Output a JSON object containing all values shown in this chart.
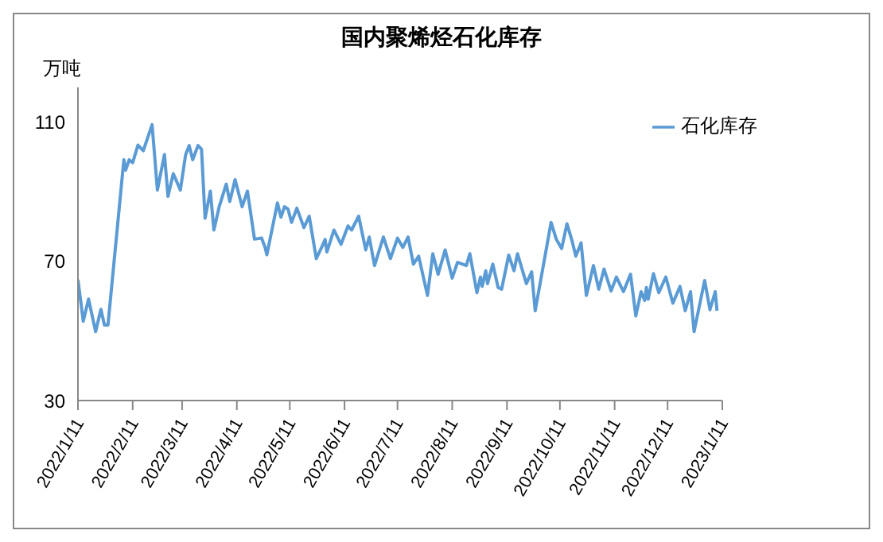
{
  "chart_data": {
    "type": "line",
    "title": "国内聚烯烃石化库存",
    "ylabel": "万吨",
    "x": [
      "2022-01-11",
      "2022-01-14",
      "2022-01-17",
      "2022-01-21",
      "2022-01-24",
      "2022-01-26",
      "2022-01-28",
      "2022-02-06",
      "2022-02-07",
      "2022-02-09",
      "2022-02-11",
      "2022-02-14",
      "2022-02-17",
      "2022-02-22",
      "2022-02-25",
      "2022-03-01",
      "2022-03-03",
      "2022-03-06",
      "2022-03-10",
      "2022-03-13",
      "2022-03-15",
      "2022-03-17",
      "2022-03-20",
      "2022-03-22",
      "2022-03-24",
      "2022-03-27",
      "2022-03-29",
      "2022-04-01",
      "2022-04-05",
      "2022-04-07",
      "2022-04-10",
      "2022-04-14",
      "2022-04-17",
      "2022-04-21",
      "2022-04-25",
      "2022-04-27",
      "2022-04-28",
      "2022-05-04",
      "2022-05-06",
      "2022-05-08",
      "2022-05-10",
      "2022-05-12",
      "2022-05-15",
      "2022-05-19",
      "2022-05-22",
      "2022-05-26",
      "2022-05-29",
      "2022-05-31",
      "2022-06-01",
      "2022-06-05",
      "2022-06-09",
      "2022-06-13",
      "2022-06-15",
      "2022-06-19",
      "2022-06-23",
      "2022-06-25",
      "2022-06-28",
      "2022-07-03",
      "2022-07-07",
      "2022-07-11",
      "2022-07-14",
      "2022-07-17",
      "2022-07-20",
      "2022-07-23",
      "2022-07-28",
      "2022-07-31",
      "2022-08-03",
      "2022-08-07",
      "2022-08-11",
      "2022-08-14",
      "2022-08-19",
      "2022-08-21",
      "2022-08-25",
      "2022-08-27",
      "2022-08-28",
      "2022-08-30",
      "2022-08-31",
      "2022-09-03",
      "2022-09-06",
      "2022-09-08",
      "2022-09-12",
      "2022-09-15",
      "2022-09-17",
      "2022-09-22",
      "2022-09-25",
      "2022-09-27",
      "2022-10-06",
      "2022-10-09",
      "2022-10-12",
      "2022-10-15",
      "2022-10-18",
      "2022-10-20",
      "2022-10-23",
      "2022-10-26",
      "2022-10-30",
      "2022-11-02",
      "2022-11-05",
      "2022-11-09",
      "2022-11-12",
      "2022-11-16",
      "2022-11-20",
      "2022-11-23",
      "2022-11-26",
      "2022-11-28",
      "2022-11-29",
      "2022-11-30",
      "2022-12-03",
      "2022-12-06",
      "2022-12-10",
      "2022-12-14",
      "2022-12-18",
      "2022-12-21",
      "2022-12-24",
      "2022-12-26",
      "2023-01-01",
      "2023-01-04",
      "2023-01-07",
      "2023-01-08"
    ],
    "series": [
      {
        "name": "石化库存",
        "color": "#5b9bd5",
        "values": [
          64.7,
          52.8,
          59.2,
          49.8,
          56.2,
          51.7,
          51.7,
          99.2,
          96.2,
          99.2,
          98.4,
          103.4,
          101.8,
          109.3,
          90.5,
          100.7,
          88.7,
          95.2,
          90.5,
          100.7,
          103.3,
          99.2,
          103.3,
          102.2,
          82.4,
          90.2,
          79,
          85.7,
          92.2,
          87.2,
          93.5,
          85.7,
          90.2,
          76.4,
          76.7,
          74,
          71.9,
          86.8,
          82.7,
          85.7,
          85,
          81.2,
          85.3,
          79.7,
          83,
          70.8,
          74,
          76.3,
          72.7,
          79,
          74.9,
          80.2,
          79,
          83,
          73.3,
          77,
          68.8,
          77,
          70.8,
          76.7,
          74,
          77,
          69.2,
          71.5,
          60.2,
          72.2,
          66.3,
          73.3,
          65.2,
          69.7,
          68.8,
          72.2,
          61,
          65.5,
          62.8,
          67.3,
          63.6,
          69.2,
          62.5,
          62,
          71.8,
          67.3,
          72.2,
          63.6,
          67,
          55.8,
          81.2,
          76.3,
          73.7,
          80.8,
          75.7,
          71.5,
          75.3,
          60.2,
          68.8,
          62,
          67.8,
          61.5,
          65.5,
          61.3,
          66.3,
          54.3,
          61.3,
          58.8,
          62.5,
          59.1,
          66.5,
          61,
          65.5,
          58,
          62.8,
          55.8,
          61.3,
          49.8,
          64.5,
          56.1,
          61.3,
          55.8
        ]
      }
    ],
    "xlim": [
      "2022-01-11",
      "2023-01-11"
    ],
    "xticks": [
      {
        "value": "2022-01-11",
        "label": "2022/1/11"
      },
      {
        "value": "2022-02-11",
        "label": "2022/2/11"
      },
      {
        "value": "2022-03-11",
        "label": "2022/3/11"
      },
      {
        "value": "2022-04-11",
        "label": "2022/4/11"
      },
      {
        "value": "2022-05-11",
        "label": "2022/5/11"
      },
      {
        "value": "2022-06-11",
        "label": "2022/6/11"
      },
      {
        "value": "2022-07-11",
        "label": "2022/7/11"
      },
      {
        "value": "2022-08-11",
        "label": "2022/8/11"
      },
      {
        "value": "2022-09-11",
        "label": "2022/9/11"
      },
      {
        "value": "2022-10-11",
        "label": "2022/10/11"
      },
      {
        "value": "2022-11-11",
        "label": "2022/11/11"
      },
      {
        "value": "2022-12-11",
        "label": "2022/12/11"
      },
      {
        "value": "2023-01-11",
        "label": "2023/1/11"
      }
    ],
    "ylim": [
      30,
      120
    ],
    "yticks": [
      30,
      70,
      110
    ],
    "grid": false,
    "legend": "top right",
    "marker": "none",
    "line_style": "solid"
  }
}
